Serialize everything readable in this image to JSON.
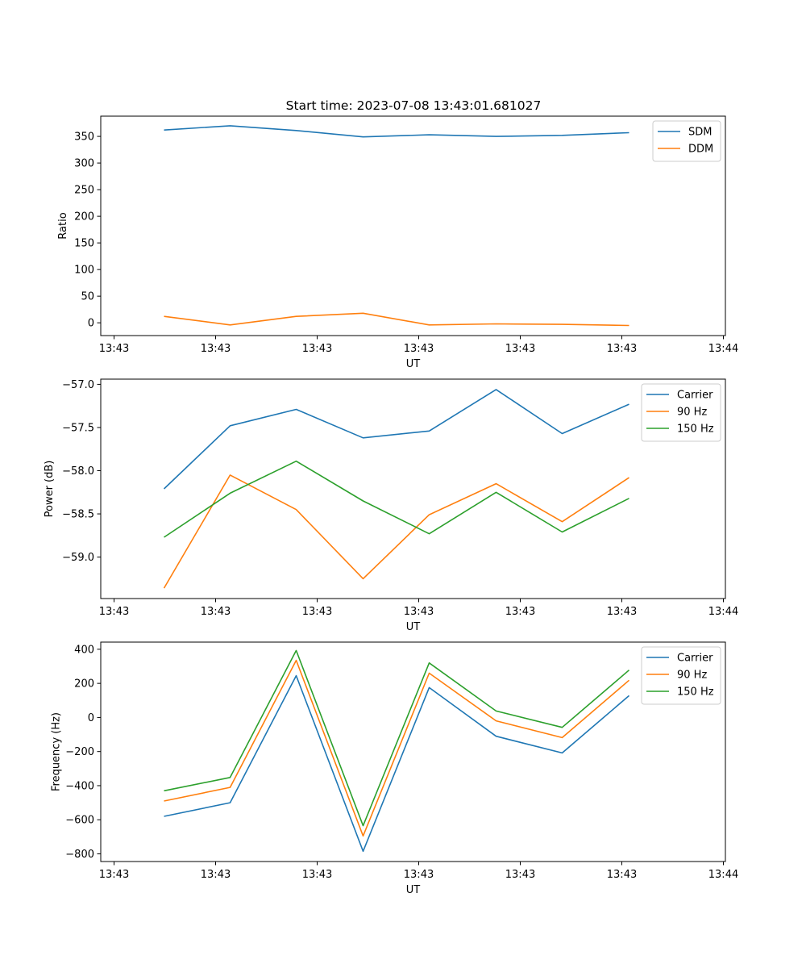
{
  "figure_title": "Start time: 2023-07-08 13:43:01.681027",
  "chart_data": [
    {
      "type": "line",
      "title": "Start time: 2023-07-08 13:43:01.681027",
      "xlabel": "UT",
      "ylabel": "Ratio",
      "x_tick_labels": [
        "13:43",
        "13:43",
        "13:43",
        "13:43",
        "13:43",
        "13:43",
        "13:44"
      ],
      "y_ticks": [
        0,
        50,
        100,
        150,
        200,
        250,
        300,
        350
      ],
      "y_tick_labels": [
        "0",
        "50",
        "100",
        "150",
        "200",
        "250",
        "300",
        "350"
      ],
      "ylim": [
        -24,
        388
      ],
      "legend": "top-right",
      "series": [
        {
          "name": "SDM",
          "color": "#1f77b4",
          "values": [
            362,
            370,
            361,
            349,
            353,
            350,
            352,
            357
          ]
        },
        {
          "name": "DDM",
          "color": "#ff7f0e",
          "values": [
            12,
            -4,
            12,
            18,
            -4,
            -2,
            -3,
            -5
          ]
        }
      ]
    },
    {
      "type": "line",
      "title": "",
      "xlabel": "UT",
      "ylabel": "Power (dB)",
      "x_tick_labels": [
        "13:43",
        "13:43",
        "13:43",
        "13:43",
        "13:43",
        "13:43",
        "13:44"
      ],
      "y_ticks": [
        -59.0,
        -58.5,
        -58.0,
        -57.5,
        -57.0
      ],
      "y_tick_labels": [
        "−59.0",
        "−58.5",
        "−58.0",
        "−57.5",
        "−57.0"
      ],
      "ylim": [
        -59.48,
        -56.94
      ],
      "legend": "top-right",
      "series": [
        {
          "name": "Carrier",
          "color": "#1f77b4",
          "values": [
            -58.21,
            -57.48,
            -57.29,
            -57.62,
            -57.54,
            -57.06,
            -57.57,
            -57.23
          ]
        },
        {
          "name": "90 Hz",
          "color": "#ff7f0e",
          "values": [
            -59.36,
            -58.05,
            -58.45,
            -59.25,
            -58.51,
            -58.15,
            -58.59,
            -58.08
          ]
        },
        {
          "name": "150 Hz",
          "color": "#2ca02c",
          "values": [
            -58.77,
            -58.26,
            -57.89,
            -58.35,
            -58.73,
            -58.25,
            -58.71,
            -58.32
          ]
        }
      ]
    },
    {
      "type": "line",
      "title": "",
      "xlabel": "UT",
      "ylabel": "Frequency (Hz)",
      "x_tick_labels": [
        "13:43",
        "13:43",
        "13:43",
        "13:43",
        "13:43",
        "13:43",
        "13:44"
      ],
      "y_ticks": [
        -800,
        -600,
        -400,
        -200,
        0,
        200,
        400
      ],
      "y_tick_labels": [
        "−800",
        "−600",
        "−400",
        "−200",
        "0",
        "200",
        "400"
      ],
      "ylim": [
        -845,
        442
      ],
      "legend": "top-right",
      "series": [
        {
          "name": "Carrier",
          "color": "#1f77b4",
          "values": [
            -580,
            -500,
            245,
            -785,
            175,
            -110,
            -208,
            128
          ]
        },
        {
          "name": "90 Hz",
          "color": "#ff7f0e",
          "values": [
            -490,
            -410,
            335,
            -695,
            260,
            -20,
            -118,
            218
          ]
        },
        {
          "name": "150 Hz",
          "color": "#2ca02c",
          "values": [
            -430,
            -352,
            393,
            -635,
            320,
            38,
            -58,
            278
          ]
        }
      ]
    }
  ]
}
